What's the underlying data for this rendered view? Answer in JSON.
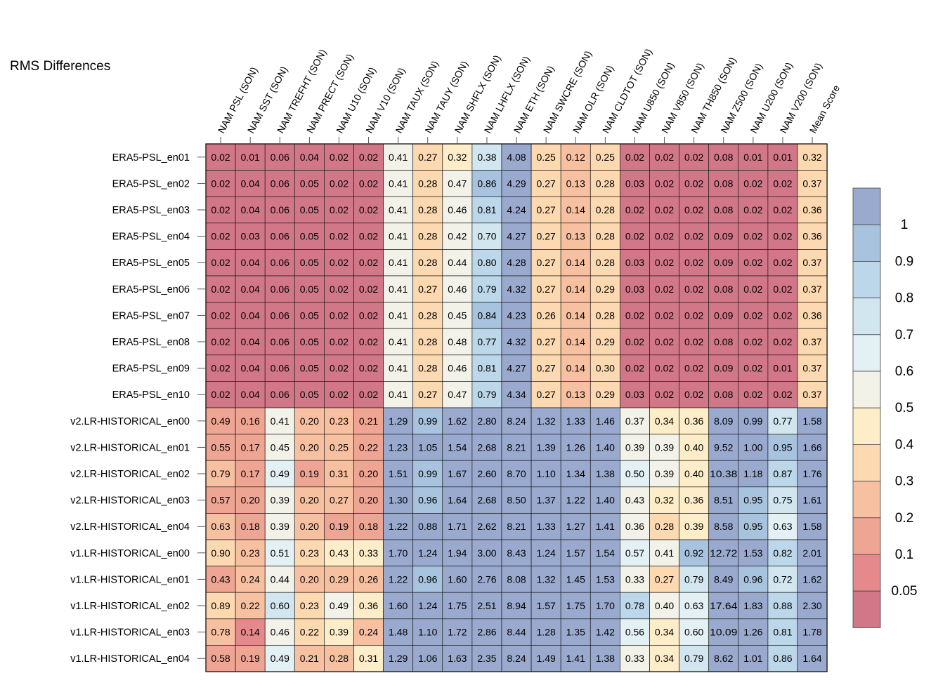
{
  "chart_data": {
    "type": "heatmap",
    "title": "RMS Differences",
    "columns": [
      "NAM PSL (SON)",
      "NAM SST (SON)",
      "NAM TREFHT (SON)",
      "NAM PRECT (SON)",
      "NAM U10 (SON)",
      "NAM V10 (SON)",
      "NAM TAUX (SON)",
      "NAM TAUY (SON)",
      "NAM SHFLX (SON)",
      "NAM LHFLX (SON)",
      "NAM ETH (SON)",
      "NAM SWCRE (SON)",
      "NAM OLR (SON)",
      "NAM CLDTOT (SON)",
      "NAM U850 (SON)",
      "NAM V850 (SON)",
      "NAM TH850 (SON)",
      "NAM Z500 (SON)",
      "NAM U200 (SON)",
      "NAM V200 (SON)",
      "Mean Score"
    ],
    "rows": [
      "ERA5-PSL_en01",
      "ERA5-PSL_en02",
      "ERA5-PSL_en03",
      "ERA5-PSL_en04",
      "ERA5-PSL_en05",
      "ERA5-PSL_en06",
      "ERA5-PSL_en07",
      "ERA5-PSL_en08",
      "ERA5-PSL_en09",
      "ERA5-PSL_en10",
      "v2.LR-HISTORICAL_en00",
      "v2.LR-HISTORICAL_en01",
      "v2.LR-HISTORICAL_en02",
      "v2.LR-HISTORICAL_en03",
      "v2.LR-HISTORICAL_en04",
      "v1.LR-HISTORICAL_en00",
      "v1.LR-HISTORICAL_en01",
      "v1.LR-HISTORICAL_en02",
      "v1.LR-HISTORICAL_en03",
      "v1.LR-HISTORICAL_en04"
    ],
    "values": [
      [
        "0.02",
        "0.01",
        "0.06",
        "0.04",
        "0.02",
        "0.02",
        "0.41",
        "0.27",
        "0.32",
        "0.38",
        "4.08",
        "0.25",
        "0.12",
        "0.25",
        "0.02",
        "0.02",
        "0.02",
        "0.08",
        "0.01",
        "0.01",
        "0.32"
      ],
      [
        "0.02",
        "0.04",
        "0.06",
        "0.05",
        "0.02",
        "0.02",
        "0.41",
        "0.28",
        "0.47",
        "0.86",
        "4.29",
        "0.27",
        "0.13",
        "0.28",
        "0.03",
        "0.02",
        "0.02",
        "0.08",
        "0.02",
        "0.02",
        "0.37"
      ],
      [
        "0.02",
        "0.04",
        "0.06",
        "0.05",
        "0.02",
        "0.02",
        "0.41",
        "0.28",
        "0.46",
        "0.81",
        "4.24",
        "0.27",
        "0.14",
        "0.28",
        "0.02",
        "0.02",
        "0.02",
        "0.08",
        "0.02",
        "0.02",
        "0.36"
      ],
      [
        "0.02",
        "0.03",
        "0.06",
        "0.05",
        "0.02",
        "0.02",
        "0.41",
        "0.28",
        "0.42",
        "0.70",
        "4.27",
        "0.27",
        "0.13",
        "0.28",
        "0.02",
        "0.02",
        "0.02",
        "0.09",
        "0.02",
        "0.02",
        "0.36"
      ],
      [
        "0.02",
        "0.04",
        "0.06",
        "0.05",
        "0.02",
        "0.02",
        "0.41",
        "0.28",
        "0.44",
        "0.80",
        "4.28",
        "0.27",
        "0.14",
        "0.28",
        "0.03",
        "0.02",
        "0.02",
        "0.09",
        "0.02",
        "0.02",
        "0.37"
      ],
      [
        "0.02",
        "0.04",
        "0.06",
        "0.05",
        "0.02",
        "0.02",
        "0.41",
        "0.27",
        "0.46",
        "0.79",
        "4.32",
        "0.27",
        "0.14",
        "0.29",
        "0.03",
        "0.02",
        "0.02",
        "0.08",
        "0.02",
        "0.02",
        "0.37"
      ],
      [
        "0.02",
        "0.04",
        "0.06",
        "0.05",
        "0.02",
        "0.02",
        "0.41",
        "0.28",
        "0.45",
        "0.84",
        "4.23",
        "0.26",
        "0.14",
        "0.28",
        "0.02",
        "0.02",
        "0.02",
        "0.09",
        "0.02",
        "0.02",
        "0.36"
      ],
      [
        "0.02",
        "0.04",
        "0.06",
        "0.05",
        "0.02",
        "0.02",
        "0.41",
        "0.28",
        "0.48",
        "0.77",
        "4.32",
        "0.27",
        "0.14",
        "0.29",
        "0.02",
        "0.02",
        "0.02",
        "0.08",
        "0.02",
        "0.02",
        "0.37"
      ],
      [
        "0.02",
        "0.04",
        "0.06",
        "0.05",
        "0.02",
        "0.02",
        "0.41",
        "0.28",
        "0.46",
        "0.81",
        "4.27",
        "0.27",
        "0.14",
        "0.30",
        "0.02",
        "0.02",
        "0.02",
        "0.09",
        "0.02",
        "0.01",
        "0.37"
      ],
      [
        "0.02",
        "0.04",
        "0.06",
        "0.05",
        "0.02",
        "0.02",
        "0.41",
        "0.27",
        "0.47",
        "0.79",
        "4.34",
        "0.27",
        "0.13",
        "0.29",
        "0.03",
        "0.02",
        "0.02",
        "0.08",
        "0.02",
        "0.02",
        "0.37"
      ],
      [
        "0.49",
        "0.16",
        "0.41",
        "0.20",
        "0.23",
        "0.21",
        "1.29",
        "0.99",
        "1.62",
        "2.80",
        "8.24",
        "1.32",
        "1.33",
        "1.46",
        "0.37",
        "0.34",
        "0.36",
        "8.09",
        "0.99",
        "0.77",
        "1.58"
      ],
      [
        "0.55",
        "0.17",
        "0.45",
        "0.20",
        "0.25",
        "0.22",
        "1.23",
        "1.05",
        "1.54",
        "2.68",
        "8.21",
        "1.39",
        "1.26",
        "1.40",
        "0.39",
        "0.39",
        "0.40",
        "9.52",
        "1.00",
        "0.95",
        "1.66"
      ],
      [
        "0.79",
        "0.17",
        "0.49",
        "0.19",
        "0.31",
        "0.20",
        "1.51",
        "0.99",
        "1.67",
        "2.60",
        "8.70",
        "1.10",
        "1.34",
        "1.38",
        "0.50",
        "0.39",
        "0.40",
        "10.38",
        "1.18",
        "0.87",
        "1.76"
      ],
      [
        "0.57",
        "0.20",
        "0.39",
        "0.20",
        "0.27",
        "0.20",
        "1.30",
        "0.96",
        "1.64",
        "2.68",
        "8.50",
        "1.37",
        "1.22",
        "1.40",
        "0.43",
        "0.32",
        "0.36",
        "8.51",
        "0.95",
        "0.75",
        "1.61"
      ],
      [
        "0.63",
        "0.18",
        "0.39",
        "0.20",
        "0.19",
        "0.18",
        "1.22",
        "0.88",
        "1.71",
        "2.62",
        "8.21",
        "1.33",
        "1.27",
        "1.41",
        "0.36",
        "0.28",
        "0.39",
        "8.58",
        "0.95",
        "0.63",
        "1.58"
      ],
      [
        "0.90",
        "0.23",
        "0.51",
        "0.23",
        "0.43",
        "0.33",
        "1.70",
        "1.24",
        "1.94",
        "3.00",
        "8.43",
        "1.24",
        "1.57",
        "1.54",
        "0.57",
        "0.41",
        "0.92",
        "12.72",
        "1.53",
        "0.82",
        "2.01"
      ],
      [
        "0.43",
        "0.24",
        "0.44",
        "0.20",
        "0.29",
        "0.26",
        "1.22",
        "0.96",
        "1.60",
        "2.76",
        "8.08",
        "1.32",
        "1.45",
        "1.53",
        "0.33",
        "0.27",
        "0.79",
        "8.49",
        "0.96",
        "0.72",
        "1.62"
      ],
      [
        "0.89",
        "0.22",
        "0.60",
        "0.23",
        "0.49",
        "0.36",
        "1.60",
        "1.24",
        "1.75",
        "2.51",
        "8.94",
        "1.57",
        "1.75",
        "1.70",
        "0.78",
        "0.40",
        "0.63",
        "17.64",
        "1.83",
        "0.88",
        "2.30"
      ],
      [
        "0.78",
        "0.14",
        "0.46",
        "0.22",
        "0.39",
        "0.24",
        "1.48",
        "1.10",
        "1.72",
        "2.86",
        "8.44",
        "1.28",
        "1.35",
        "1.42",
        "0.56",
        "0.34",
        "0.60",
        "10.09",
        "1.26",
        "0.81",
        "1.78"
      ],
      [
        "0.58",
        "0.19",
        "0.49",
        "0.21",
        "0.28",
        "0.31",
        "1.29",
        "1.06",
        "1.63",
        "2.35",
        "8.24",
        "1.49",
        "1.41",
        "1.38",
        "0.33",
        "0.34",
        "0.79",
        "8.62",
        "1.01",
        "0.86",
        "1.64"
      ]
    ],
    "colorbar": {
      "labels": [
        "1",
        "0.9",
        "0.8",
        "0.7",
        "0.6",
        "0.5",
        "0.4",
        "0.3",
        "0.2",
        "0.1",
        "0.05"
      ],
      "colors": [
        "#9aaacf",
        "#a8c3de",
        "#bcd7e9",
        "#d1e6ef",
        "#e3f0f4",
        "#f2f2e9",
        "#fdedc8",
        "#fcd9b0",
        "#f7c0a0",
        "#efa593",
        "#e6898c",
        "#d27788"
      ]
    },
    "color_classes": {
      "PSL": [
        [
          0,
          0.4,
          0
        ],
        [
          0.4,
          0.6,
          2
        ],
        [
          0.6,
          0.8,
          3
        ],
        [
          0.8,
          0.95,
          4
        ],
        [
          0.95,
          2,
          6
        ]
      ],
      "SST": [
        [
          0,
          0.1,
          0
        ],
        [
          0.1,
          0.16,
          1
        ],
        [
          0.16,
          0.22,
          2
        ],
        [
          0.22,
          1,
          3
        ]
      ],
      "TREFHT": [
        [
          0,
          0.35,
          0
        ],
        [
          0.35,
          0.47,
          6
        ],
        [
          0.47,
          0.58,
          7
        ],
        [
          0.58,
          2,
          8
        ]
      ],
      "PRECT": [
        [
          0,
          0.1,
          0
        ],
        [
          0.1,
          0.2,
          2
        ],
        [
          0.2,
          0.22,
          3
        ],
        [
          0.22,
          1,
          4
        ]
      ],
      "U10": [
        [
          0,
          0.1,
          0
        ],
        [
          0.1,
          0.22,
          2
        ],
        [
          0.22,
          0.36,
          3
        ],
        [
          0.36,
          0.45,
          5
        ],
        [
          0.45,
          2,
          6
        ]
      ],
      "V10": [
        [
          0,
          0.1,
          0
        ],
        [
          0.1,
          0.23,
          2
        ],
        [
          0.23,
          0.3,
          3
        ],
        [
          0.3,
          1,
          5
        ]
      ],
      "TAUX": [
        [
          0,
          0.8,
          6
        ],
        [
          0.8,
          10,
          11
        ]
      ],
      "TAUY": [
        [
          0,
          0.5,
          4
        ],
        [
          0.5,
          0.9,
          11
        ],
        [
          0.9,
          1.01,
          10
        ],
        [
          1.01,
          10,
          11
        ]
      ],
      "SHFLX": [
        [
          0,
          0.36,
          5
        ],
        [
          0.36,
          0.5,
          6
        ],
        [
          0.5,
          10,
          11
        ]
      ],
      "LHFLX": [
        [
          0,
          0.75,
          8
        ],
        [
          0.75,
          0.83,
          9
        ],
        [
          0.83,
          1.2,
          10
        ],
        [
          1.2,
          10,
          11
        ]
      ],
      "ETH": [
        [
          0,
          100,
          11
        ]
      ],
      "SWCRE": [
        [
          0,
          0.6,
          4
        ],
        [
          0.6,
          10,
          11
        ]
      ],
      "OLR": [
        [
          0,
          0.3,
          3
        ],
        [
          0.3,
          10,
          11
        ]
      ],
      "CLDTOT": [
        [
          0,
          0.6,
          4
        ],
        [
          0.6,
          10,
          11
        ]
      ],
      "U850": [
        [
          0,
          0.1,
          0
        ],
        [
          0.1,
          0.48,
          6
        ],
        [
          0.48,
          0.6,
          7
        ],
        [
          0.6,
          2,
          9
        ]
      ],
      "V850": [
        [
          0,
          0.1,
          0
        ],
        [
          0.1,
          0.3,
          4
        ],
        [
          0.3,
          0.38,
          5
        ],
        [
          0.38,
          0.45,
          6
        ],
        [
          0.45,
          2,
          8
        ]
      ],
      "TH850": [
        [
          0,
          0.1,
          0
        ],
        [
          0.1,
          0.45,
          5
        ],
        [
          0.45,
          0.7,
          7
        ],
        [
          0.7,
          0.85,
          8
        ],
        [
          0.85,
          2,
          10
        ]
      ],
      "Z500": [
        [
          0,
          0.2,
          0
        ],
        [
          0.2,
          100,
          11
        ]
      ],
      "U200": [
        [
          0,
          0.1,
          0
        ],
        [
          0.1,
          0.97,
          10
        ],
        [
          0.97,
          10,
          11
        ]
      ],
      "V200": [
        [
          0,
          0.1,
          0
        ],
        [
          0.1,
          0.7,
          7
        ],
        [
          0.7,
          0.78,
          8
        ],
        [
          0.78,
          0.92,
          9
        ],
        [
          0.92,
          2,
          10
        ]
      ],
      "Mean": [
        [
          0,
          0.5,
          4
        ],
        [
          0.5,
          10,
          11
        ]
      ]
    }
  }
}
